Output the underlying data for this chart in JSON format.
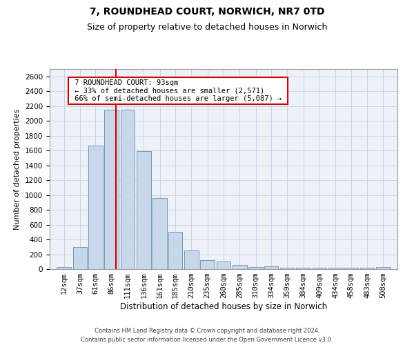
{
  "title_line1": "7, ROUNDHEAD COURT, NORWICH, NR7 0TD",
  "title_line2": "Size of property relative to detached houses in Norwich",
  "xlabel": "Distribution of detached houses by size in Norwich",
  "ylabel": "Number of detached properties",
  "footer1": "Contains HM Land Registry data © Crown copyright and database right 2024.",
  "footer2": "Contains public sector information licensed under the Open Government Licence v3.0.",
  "annotation_line1": "7 ROUNDHEAD COURT: 93sqm",
  "annotation_line2": "← 33% of detached houses are smaller (2,571)",
  "annotation_line3": "66% of semi-detached houses are larger (5,087) →",
  "property_size": 93,
  "categories": [
    12,
    37,
    61,
    86,
    111,
    136,
    161,
    185,
    210,
    235,
    260,
    285,
    310,
    334,
    359,
    384,
    409,
    434,
    458,
    483,
    508
  ],
  "values": [
    25,
    300,
    1670,
    2150,
    2150,
    1590,
    960,
    500,
    250,
    120,
    100,
    55,
    30,
    35,
    20,
    20,
    20,
    20,
    20,
    20,
    25
  ],
  "bar_color": "#c8d8ea",
  "bar_edge_color": "#6090b0",
  "bar_edge_width": 0.6,
  "grid_color": "#c8d4e4",
  "background_color": "#eef2f8",
  "redline_color": "#cc0000",
  "annotation_box_edgecolor": "#cc0000",
  "ylim": [
    0,
    2700
  ],
  "yticks": [
    0,
    200,
    400,
    600,
    800,
    1000,
    1200,
    1400,
    1600,
    1800,
    2000,
    2200,
    2400,
    2600
  ],
  "tick_label_fontsize": 7.5,
  "title1_fontsize": 10,
  "title2_fontsize": 9,
  "xlabel_fontsize": 8.5,
  "ylabel_fontsize": 8,
  "annotation_fontsize": 7.5,
  "footer_fontsize": 6
}
